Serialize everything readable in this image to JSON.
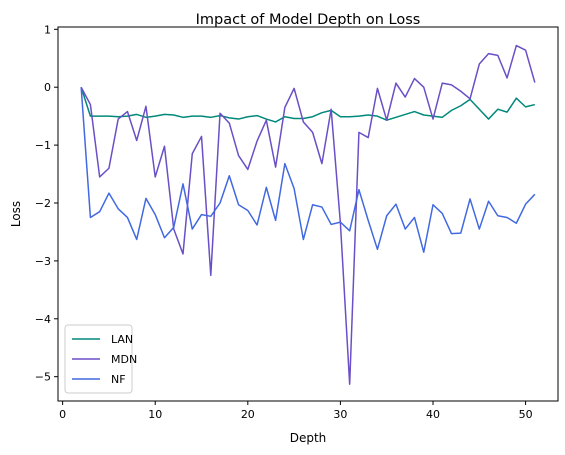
{
  "chart_data": {
    "type": "line",
    "title": "Impact of Model Depth on Loss",
    "xlabel": "Depth",
    "ylabel": "Loss",
    "xlim": [
      -0.5,
      53.5
    ],
    "ylim": [
      -5.42,
      1.04
    ],
    "xticks": [
      0,
      10,
      20,
      30,
      40,
      50
    ],
    "yticks": [
      -5,
      -4,
      -3,
      -2,
      -1,
      0,
      1
    ],
    "xtick_labels": [
      "0",
      "10",
      "20",
      "30",
      "40",
      "50"
    ],
    "ytick_labels": [
      "−5",
      "−4",
      "−3",
      "−2",
      "−1",
      "0",
      "1"
    ],
    "grid": false,
    "legend_position": "lower-left",
    "x": [
      2,
      3,
      4,
      5,
      6,
      7,
      8,
      9,
      10,
      11,
      12,
      13,
      14,
      15,
      16,
      17,
      18,
      19,
      20,
      21,
      22,
      23,
      24,
      25,
      26,
      27,
      28,
      29,
      30,
      31,
      32,
      33,
      34,
      35,
      36,
      37,
      38,
      39,
      40,
      41,
      42,
      43,
      44,
      45,
      46,
      47,
      48,
      49,
      50,
      51
    ],
    "series": [
      {
        "name": "LAN",
        "color": "#00897b",
        "values": [
          0.0,
          -0.5,
          -0.5,
          -0.5,
          -0.51,
          -0.5,
          -0.47,
          -0.52,
          -0.5,
          -0.47,
          -0.48,
          -0.52,
          -0.5,
          -0.5,
          -0.52,
          -0.49,
          -0.53,
          -0.55,
          -0.51,
          -0.49,
          -0.55,
          -0.6,
          -0.51,
          -0.54,
          -0.54,
          -0.51,
          -0.44,
          -0.4,
          -0.51,
          -0.51,
          -0.5,
          -0.48,
          -0.5,
          -0.57,
          -0.52,
          -0.47,
          -0.42,
          -0.48,
          -0.5,
          -0.52,
          -0.4,
          -0.32,
          -0.21,
          -0.38,
          -0.55,
          -0.38,
          -0.43,
          -0.19,
          -0.34,
          -0.3
        ]
      },
      {
        "name": "MDN",
        "color": "#6a4fc7",
        "values": [
          0.0,
          -0.3,
          -1.55,
          -1.4,
          -0.55,
          -0.42,
          -0.92,
          -0.33,
          -1.55,
          -1.02,
          -2.45,
          -2.88,
          -1.15,
          -0.85,
          -3.25,
          -0.45,
          -0.62,
          -1.18,
          -1.42,
          -0.93,
          -0.57,
          -1.38,
          -0.35,
          -0.02,
          -0.6,
          -0.78,
          -1.32,
          -0.38,
          -2.35,
          -5.13,
          -0.78,
          -0.87,
          -0.02,
          -0.57,
          0.07,
          -0.17,
          0.15,
          0.0,
          -0.55,
          0.07,
          0.04,
          -0.07,
          -0.2,
          0.4,
          0.58,
          0.55,
          0.16,
          0.72,
          0.64,
          0.08
        ]
      },
      {
        "name": "NF",
        "color": "#4169e1",
        "values": [
          0.0,
          -2.25,
          -2.15,
          -1.83,
          -2.1,
          -2.25,
          -2.63,
          -1.92,
          -2.2,
          -2.6,
          -2.42,
          -1.67,
          -2.45,
          -2.2,
          -2.23,
          -2.0,
          -1.53,
          -2.03,
          -2.13,
          -2.38,
          -1.73,
          -2.3,
          -1.32,
          -1.75,
          -2.63,
          -2.03,
          -2.07,
          -2.37,
          -2.33,
          -2.48,
          -1.77,
          -2.3,
          -2.8,
          -2.22,
          -2.02,
          -2.45,
          -2.25,
          -2.85,
          -2.03,
          -2.18,
          -2.53,
          -2.52,
          -1.93,
          -2.45,
          -1.97,
          -2.22,
          -2.25,
          -2.35,
          -2.02,
          -1.85
        ]
      }
    ]
  }
}
